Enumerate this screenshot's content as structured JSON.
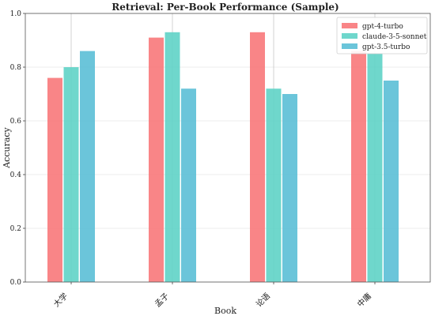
{
  "chart_data": {
    "type": "bar",
    "title": "Retrieval: Per-Book Performance (Sample)",
    "xlabel": "Book",
    "ylabel": "Accuracy",
    "categories": [
      "大学",
      "孟子",
      "论语",
      "中庸"
    ],
    "ylim": [
      0.0,
      1.0
    ],
    "yticks": [
      "0.0",
      "0.2",
      "0.4",
      "0.6",
      "0.8",
      "1.0"
    ],
    "grid": true,
    "legend_position": "top-right",
    "series": [
      {
        "name": "gpt-4-turbo",
        "color": "#f8787a",
        "values": [
          0.76,
          0.91,
          0.93,
          0.86
        ]
      },
      {
        "name": "claude-3-5-sonnet",
        "color": "#5fd3c6",
        "values": [
          0.8,
          0.93,
          0.72,
          0.85
        ]
      },
      {
        "name": "gpt-3.5-turbo",
        "color": "#5bbfd6",
        "values": [
          0.86,
          0.72,
          0.7,
          0.75
        ]
      }
    ]
  }
}
